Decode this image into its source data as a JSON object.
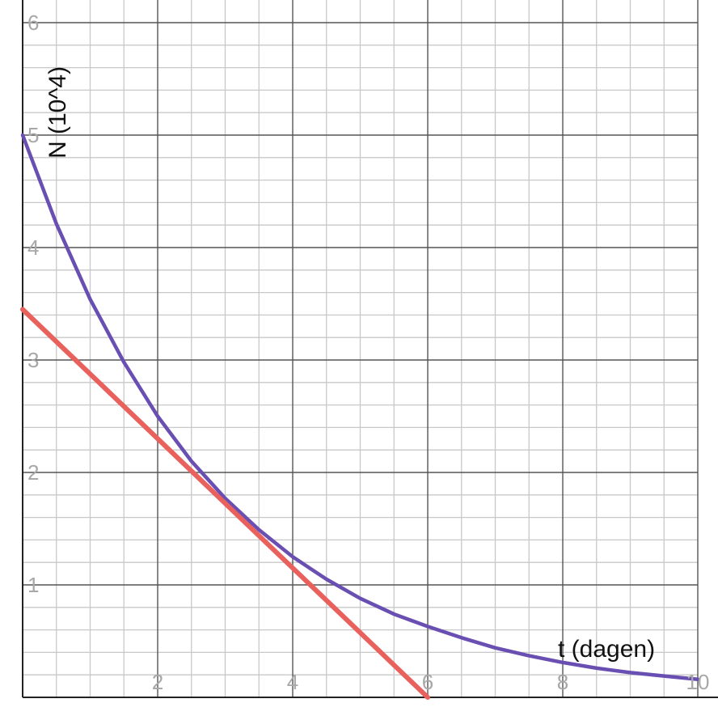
{
  "chart_data": {
    "type": "line",
    "title": "",
    "xlabel": "t (dagen)",
    "ylabel": "N (10^4)",
    "xlim": [
      0,
      10
    ],
    "ylim": [
      0,
      6
    ],
    "grid": true,
    "minor_grid": true,
    "x_ticks": [
      2,
      4,
      6,
      8,
      10
    ],
    "y_ticks": [
      1,
      2,
      3,
      4,
      5,
      6
    ],
    "x_tick_labels": [
      "2",
      "4",
      "6",
      "8",
      "10"
    ],
    "y_tick_labels": [
      "1",
      "2",
      "3",
      "4",
      "5",
      "6"
    ],
    "series": [
      {
        "color": "#6a4fb3",
        "x": [
          0,
          0.5,
          1,
          1.5,
          2,
          2.5,
          3,
          3.5,
          4,
          4.5,
          5,
          5.5,
          6,
          6.5,
          7,
          7.5,
          8,
          8.5,
          9,
          9.5,
          10
        ],
        "y": [
          5.0,
          4.21,
          3.54,
          2.98,
          2.5,
          2.1,
          1.77,
          1.49,
          1.25,
          1.05,
          0.88,
          0.74,
          0.63,
          0.53,
          0.44,
          0.37,
          0.31,
          0.26,
          0.22,
          0.19,
          0.16
        ]
      },
      {
        "color": "#e8615d",
        "x": [
          0,
          6
        ],
        "y": [
          3.45,
          0
        ]
      }
    ],
    "colors": {
      "major_grid": "#555555",
      "minor_grid": "#c8c8c8",
      "axis": "#222222"
    }
  }
}
